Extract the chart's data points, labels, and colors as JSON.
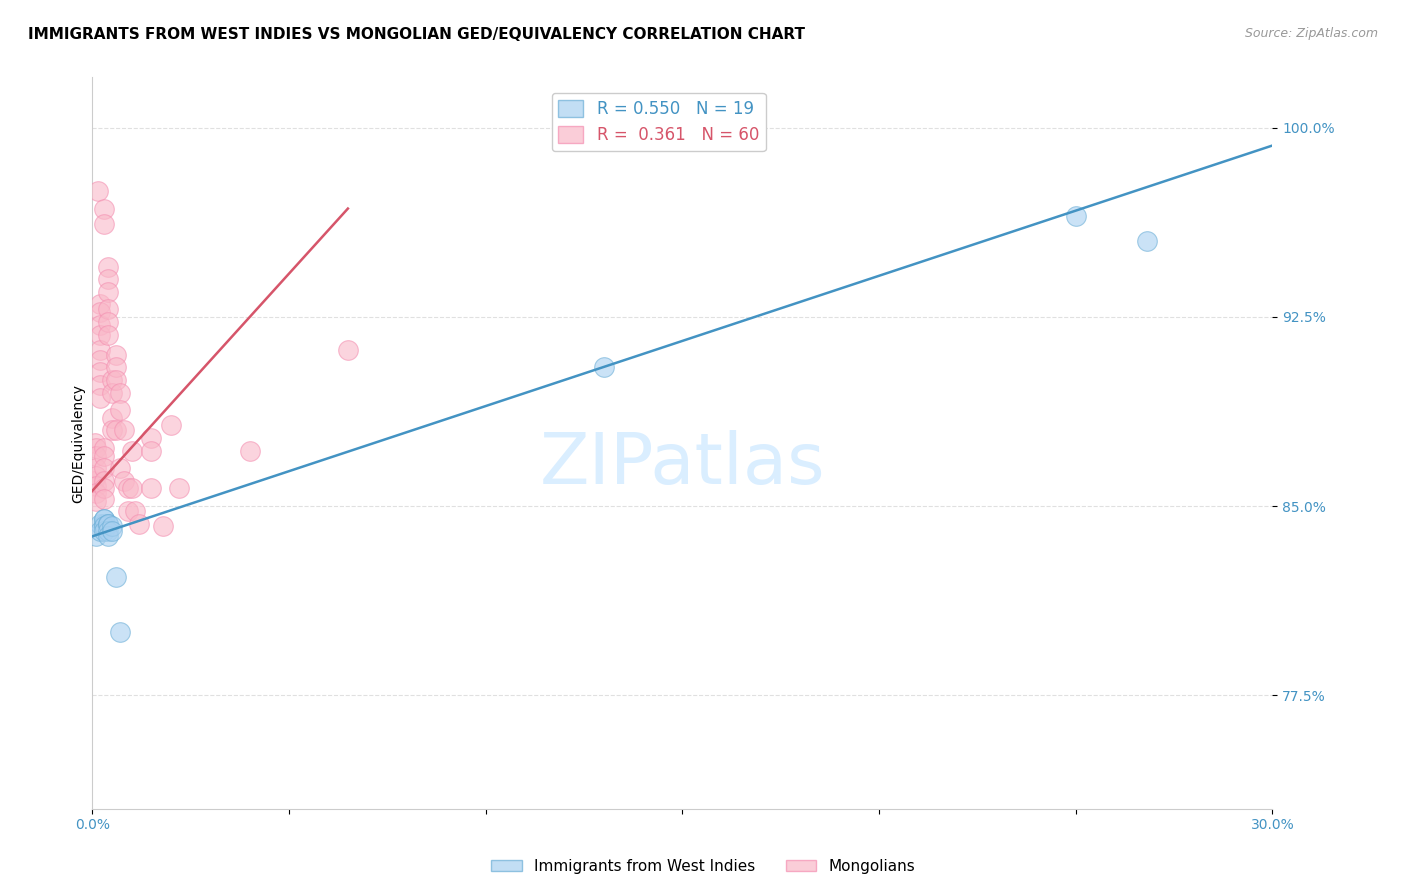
{
  "title": "IMMIGRANTS FROM WEST INDIES VS MONGOLIAN GED/EQUIVALENCY CORRELATION CHART",
  "source_text": "Source: ZipAtlas.com",
  "ylabel": "GED/Equivalency",
  "watermark": "ZIPatlas",
  "xlim": [
    0.0,
    0.3
  ],
  "ylim": [
    0.73,
    1.02
  ],
  "xticks": [
    0.0,
    0.05,
    0.1,
    0.15,
    0.2,
    0.25,
    0.3
  ],
  "xticklabels": [
    "0.0%",
    "",
    "",
    "",
    "",
    "",
    "30.0%"
  ],
  "yticks": [
    0.775,
    0.85,
    0.925,
    1.0
  ],
  "yticklabels": [
    "77.5%",
    "85.0%",
    "92.5%",
    "100.0%"
  ],
  "blue_R": 0.55,
  "blue_N": 19,
  "pink_R": 0.361,
  "pink_N": 60,
  "blue_label": "Immigrants from West Indies",
  "pink_label": "Mongolians",
  "blue_color": "#a8d0f0",
  "pink_color": "#f9b8c8",
  "blue_edge_color": "#6baed6",
  "pink_edge_color": "#f48fb1",
  "blue_line_color": "#4393c3",
  "pink_line_color": "#d6556a",
  "blue_x": [
    0.001,
    0.002,
    0.002,
    0.003,
    0.003,
    0.003,
    0.003,
    0.003,
    0.004,
    0.004,
    0.004,
    0.004,
    0.005,
    0.005,
    0.006,
    0.007,
    0.13,
    0.25,
    0.268
  ],
  "blue_y": [
    0.838,
    0.843,
    0.84,
    0.843,
    0.845,
    0.845,
    0.842,
    0.84,
    0.843,
    0.843,
    0.84,
    0.838,
    0.842,
    0.84,
    0.822,
    0.8,
    0.905,
    0.965,
    0.955
  ],
  "pink_x": [
    0.0005,
    0.0008,
    0.001,
    0.001,
    0.001,
    0.001,
    0.001,
    0.001,
    0.001,
    0.0015,
    0.002,
    0.002,
    0.002,
    0.002,
    0.002,
    0.002,
    0.002,
    0.002,
    0.002,
    0.003,
    0.003,
    0.003,
    0.003,
    0.003,
    0.003,
    0.003,
    0.003,
    0.004,
    0.004,
    0.004,
    0.004,
    0.004,
    0.004,
    0.005,
    0.005,
    0.005,
    0.005,
    0.006,
    0.006,
    0.006,
    0.006,
    0.007,
    0.007,
    0.007,
    0.008,
    0.008,
    0.009,
    0.009,
    0.01,
    0.01,
    0.011,
    0.012,
    0.015,
    0.015,
    0.015,
    0.018,
    0.02,
    0.022,
    0.04,
    0.065
  ],
  "pink_y": [
    0.86,
    0.875,
    0.873,
    0.87,
    0.865,
    0.862,
    0.858,
    0.855,
    0.852,
    0.975,
    0.93,
    0.927,
    0.922,
    0.918,
    0.912,
    0.908,
    0.903,
    0.898,
    0.893,
    0.968,
    0.962,
    0.873,
    0.87,
    0.865,
    0.86,
    0.857,
    0.853,
    0.945,
    0.94,
    0.935,
    0.928,
    0.923,
    0.918,
    0.9,
    0.895,
    0.885,
    0.88,
    0.91,
    0.905,
    0.9,
    0.88,
    0.895,
    0.888,
    0.865,
    0.88,
    0.86,
    0.857,
    0.848,
    0.872,
    0.857,
    0.848,
    0.843,
    0.877,
    0.872,
    0.857,
    0.842,
    0.882,
    0.857,
    0.872,
    0.912
  ],
  "blue_trendline_x": [
    0.0,
    0.3
  ],
  "blue_trendline_y": [
    0.838,
    0.993
  ],
  "pink_trendline_x": [
    0.0,
    0.065
  ],
  "pink_trendline_y": [
    0.856,
    0.968
  ],
  "title_fontsize": 11,
  "axis_label_fontsize": 10,
  "tick_fontsize": 10,
  "legend_fontsize": 12,
  "watermark_fontsize": 52,
  "watermark_color": "#daeeff",
  "background_color": "#ffffff",
  "grid_color": "#e0e0e0"
}
